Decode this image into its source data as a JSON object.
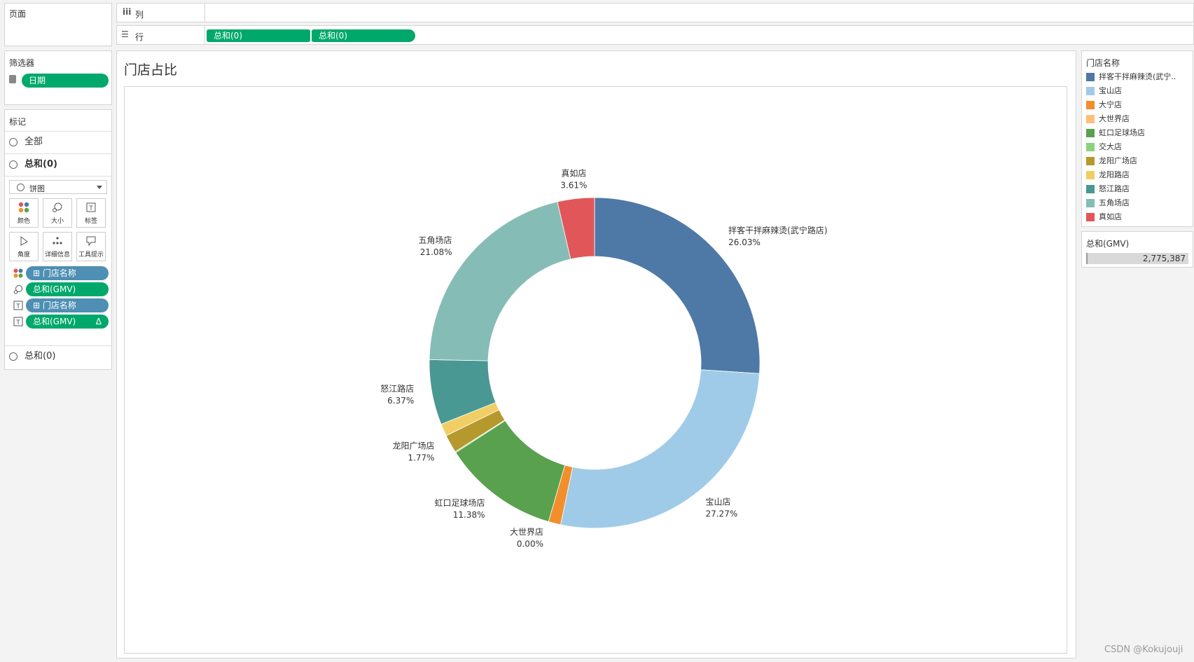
{
  "pages_panel": {
    "title": "页面"
  },
  "columns_shelf": {
    "icon": "iii",
    "label": "列"
  },
  "rows_shelf": {
    "icon": "☰",
    "label": "行",
    "pills": [
      "总和(0)",
      "总和(0)"
    ]
  },
  "filters_panel": {
    "title": "筛选器",
    "filter_pill": "日期"
  },
  "marks_panel": {
    "title": "标记",
    "all_label": "全部",
    "sum_label": "总和(0)",
    "mark_type": "饼图",
    "buttons": [
      "颜色",
      "大小",
      "标签",
      "角度",
      "详细信息",
      "工具提示"
    ],
    "fields": [
      {
        "icon": "color-icon",
        "label": "门店名称",
        "prefix": "⊞",
        "type": "dimension"
      },
      {
        "icon": "size-icon",
        "label": "总和(GMV)",
        "prefix": "",
        "type": "measure"
      },
      {
        "icon": "label-icon",
        "label": "门店名称",
        "prefix": "⊞",
        "type": "dimension"
      },
      {
        "icon": "label-icon",
        "label": "总和(GMV)",
        "prefix": "",
        "suffix": "Δ",
        "type": "measure"
      }
    ],
    "bottom_sum_label": "总和(0)"
  },
  "sheet": {
    "title": "门店占比"
  },
  "legend": {
    "title": "门店名称",
    "items": [
      {
        "label": "拌客干拌麻辣烫(武宁..",
        "color": "#4e79a7"
      },
      {
        "label": "宝山店",
        "color": "#a0cbe8"
      },
      {
        "label": "大宁店",
        "color": "#f28e2b"
      },
      {
        "label": "大世界店",
        "color": "#ffbe7d"
      },
      {
        "label": "虹口足球场店",
        "color": "#59a14f"
      },
      {
        "label": "交大店",
        "color": "#8cd17d"
      },
      {
        "label": "龙阳广场店",
        "color": "#b6992d"
      },
      {
        "label": "龙阳路店",
        "color": "#f1ce63"
      },
      {
        "label": "怒江路店",
        "color": "#499894"
      },
      {
        "label": "五角场店",
        "color": "#86bcb6"
      },
      {
        "label": "真如店",
        "color": "#e15759"
      }
    ]
  },
  "size_legend": {
    "title": "总和(GMV)",
    "value": "2,775,387"
  },
  "watermark": "CSDN @Kokujouji",
  "chart_data": {
    "type": "pie",
    "title": "门店占比",
    "donut": true,
    "total": 2775387,
    "slices": [
      {
        "name": "拌客干拌麻辣烫(武宁路店)",
        "pct": 26.03,
        "label": "26.03%",
        "color": "#4e79a7",
        "labeled": true
      },
      {
        "name": "宝山店",
        "pct": 27.27,
        "label": "27.27%",
        "color": "#a0cbe8",
        "labeled": true
      },
      {
        "name": "大宁店",
        "pct": 1.2,
        "label": "",
        "color": "#f28e2b",
        "labeled": false
      },
      {
        "name": "大世界店",
        "pct": 0.0,
        "label": "0.00%",
        "color": "#ffbe7d",
        "labeled": true
      },
      {
        "name": "虹口足球场店",
        "pct": 11.38,
        "label": "11.38%",
        "color": "#59a14f",
        "labeled": true
      },
      {
        "name": "交大店",
        "pct": 0.1,
        "label": "",
        "color": "#8cd17d",
        "labeled": false
      },
      {
        "name": "龙阳广场店",
        "pct": 1.77,
        "label": "1.77%",
        "color": "#b6992d",
        "labeled": true
      },
      {
        "name": "龙阳路店",
        "pct": 1.2,
        "label": "",
        "color": "#f1ce63",
        "labeled": false
      },
      {
        "name": "怒江路店",
        "pct": 6.37,
        "label": "6.37%",
        "color": "#499894",
        "labeled": true
      },
      {
        "name": "五角场店",
        "pct": 21.08,
        "label": "21.08%",
        "color": "#86bcb6",
        "labeled": true
      },
      {
        "name": "真如店",
        "pct": 3.61,
        "label": "3.61%",
        "color": "#e15759",
        "labeled": true
      }
    ]
  }
}
